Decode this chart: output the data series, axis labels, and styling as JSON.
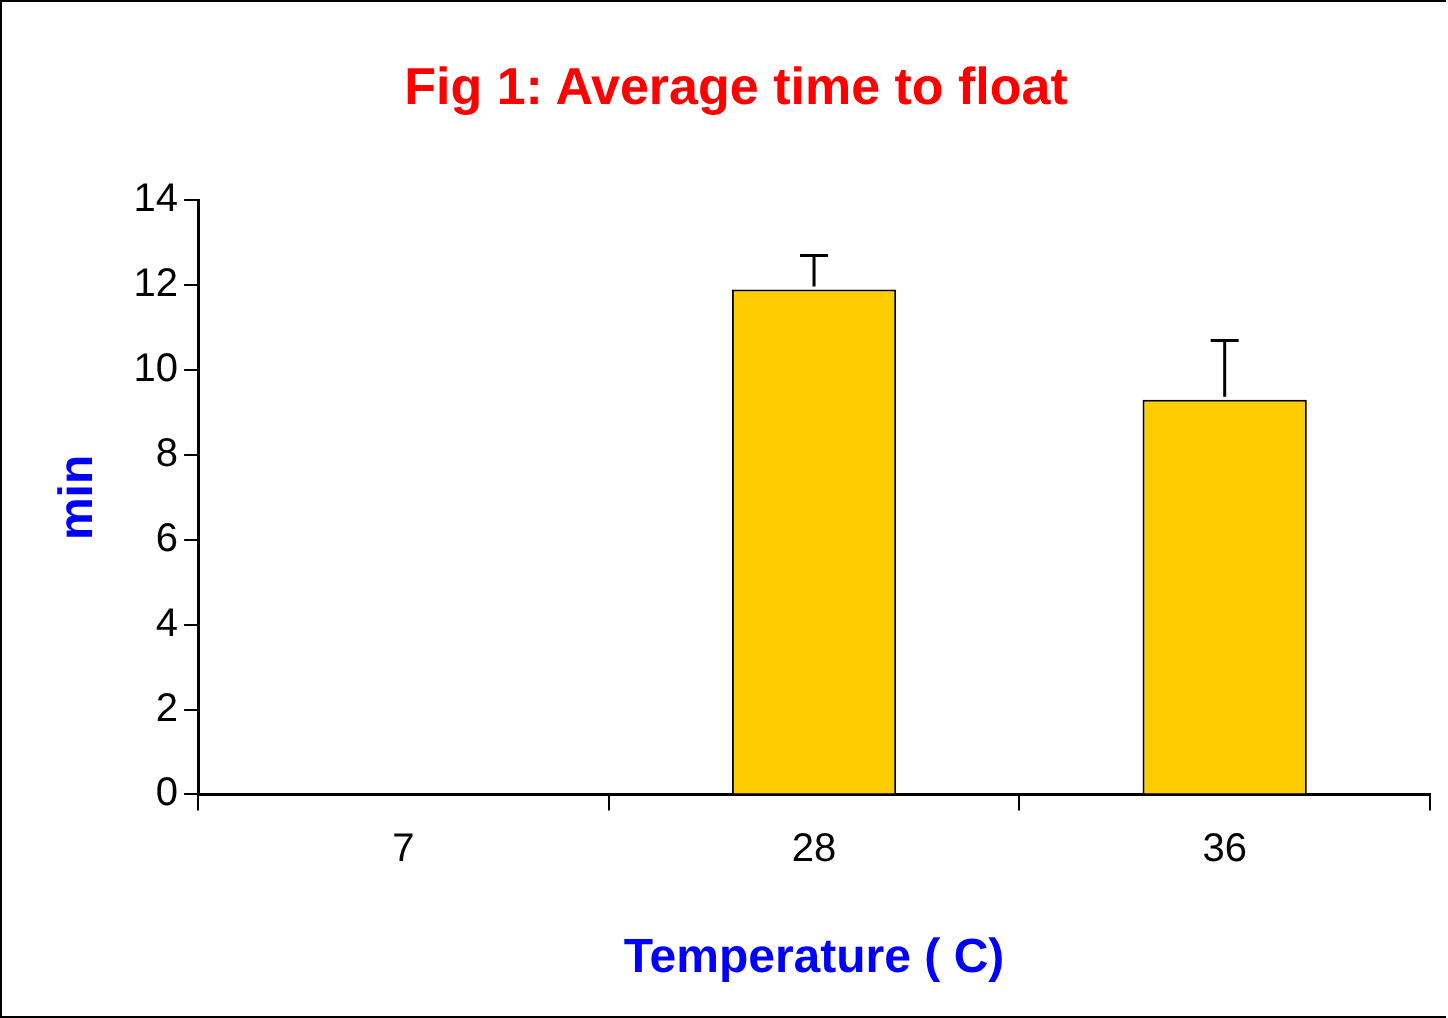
{
  "chart_data": {
    "type": "bar",
    "title": "Fig 1: Average time to float",
    "xlabel": "Temperature ( C)",
    "ylabel": "min",
    "categories": [
      "7",
      "28",
      "36"
    ],
    "values": [
      0,
      11.9,
      9.3
    ],
    "color": "#ffcc00",
    "errors": [
      null,
      [
        11.9,
        12.7
      ],
      [
        9.3,
        10.7
      ]
    ],
    "ylim": [
      0,
      14
    ],
    "yticks": [
      0,
      2,
      4,
      6,
      8,
      10,
      12,
      14
    ],
    "grid": false,
    "legend": false
  }
}
